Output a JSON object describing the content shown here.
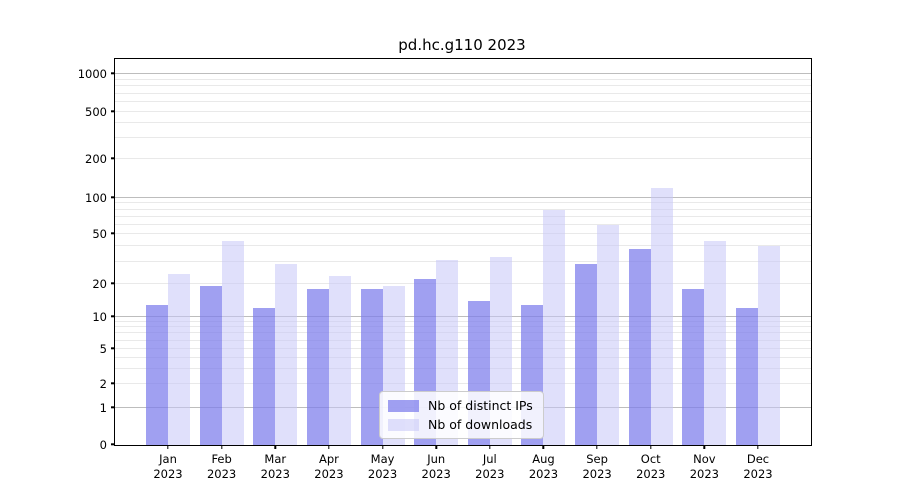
{
  "title": "pd.hc.g110 2023",
  "legend": {
    "items": [
      {
        "label": "Nb of distinct IPs",
        "color": "rgba(124,124,235,0.72)"
      },
      {
        "label": "Nb of downloads",
        "color": "rgba(199,199,247,0.55)"
      }
    ]
  },
  "colors": {
    "series_ips": "rgba(124,124,235,0.72)",
    "series_downloads": "rgba(199,199,247,0.55)",
    "major_grid": "#bdbdbd",
    "minor_grid": "#e9e9e9",
    "text": "#000000"
  },
  "chart_data": {
    "type": "bar",
    "title": "pd.hc.g110 2023",
    "categories": [
      "Jan",
      "Feb",
      "Mar",
      "Apr",
      "May",
      "Jun",
      "Jul",
      "Aug",
      "Sep",
      "Oct",
      "Nov",
      "Dec"
    ],
    "category_year": "2023",
    "series": [
      {
        "name": "Nb of distinct IPs",
        "values": [
          13,
          19,
          12,
          18,
          18,
          22,
          14,
          13,
          29,
          38,
          18,
          12
        ]
      },
      {
        "name": "Nb of downloads",
        "values": [
          24,
          44,
          29,
          23,
          19,
          31,
          33,
          80,
          60,
          120,
          44,
          40
        ]
      }
    ],
    "xlabel": "",
    "ylabel": "",
    "yscale": "symlog",
    "yticks": [
      0,
      1,
      2,
      5,
      10,
      20,
      50,
      100,
      200,
      500,
      1000
    ],
    "ylim": [
      0,
      1100
    ],
    "grid": true,
    "legend_position": "lower center"
  }
}
